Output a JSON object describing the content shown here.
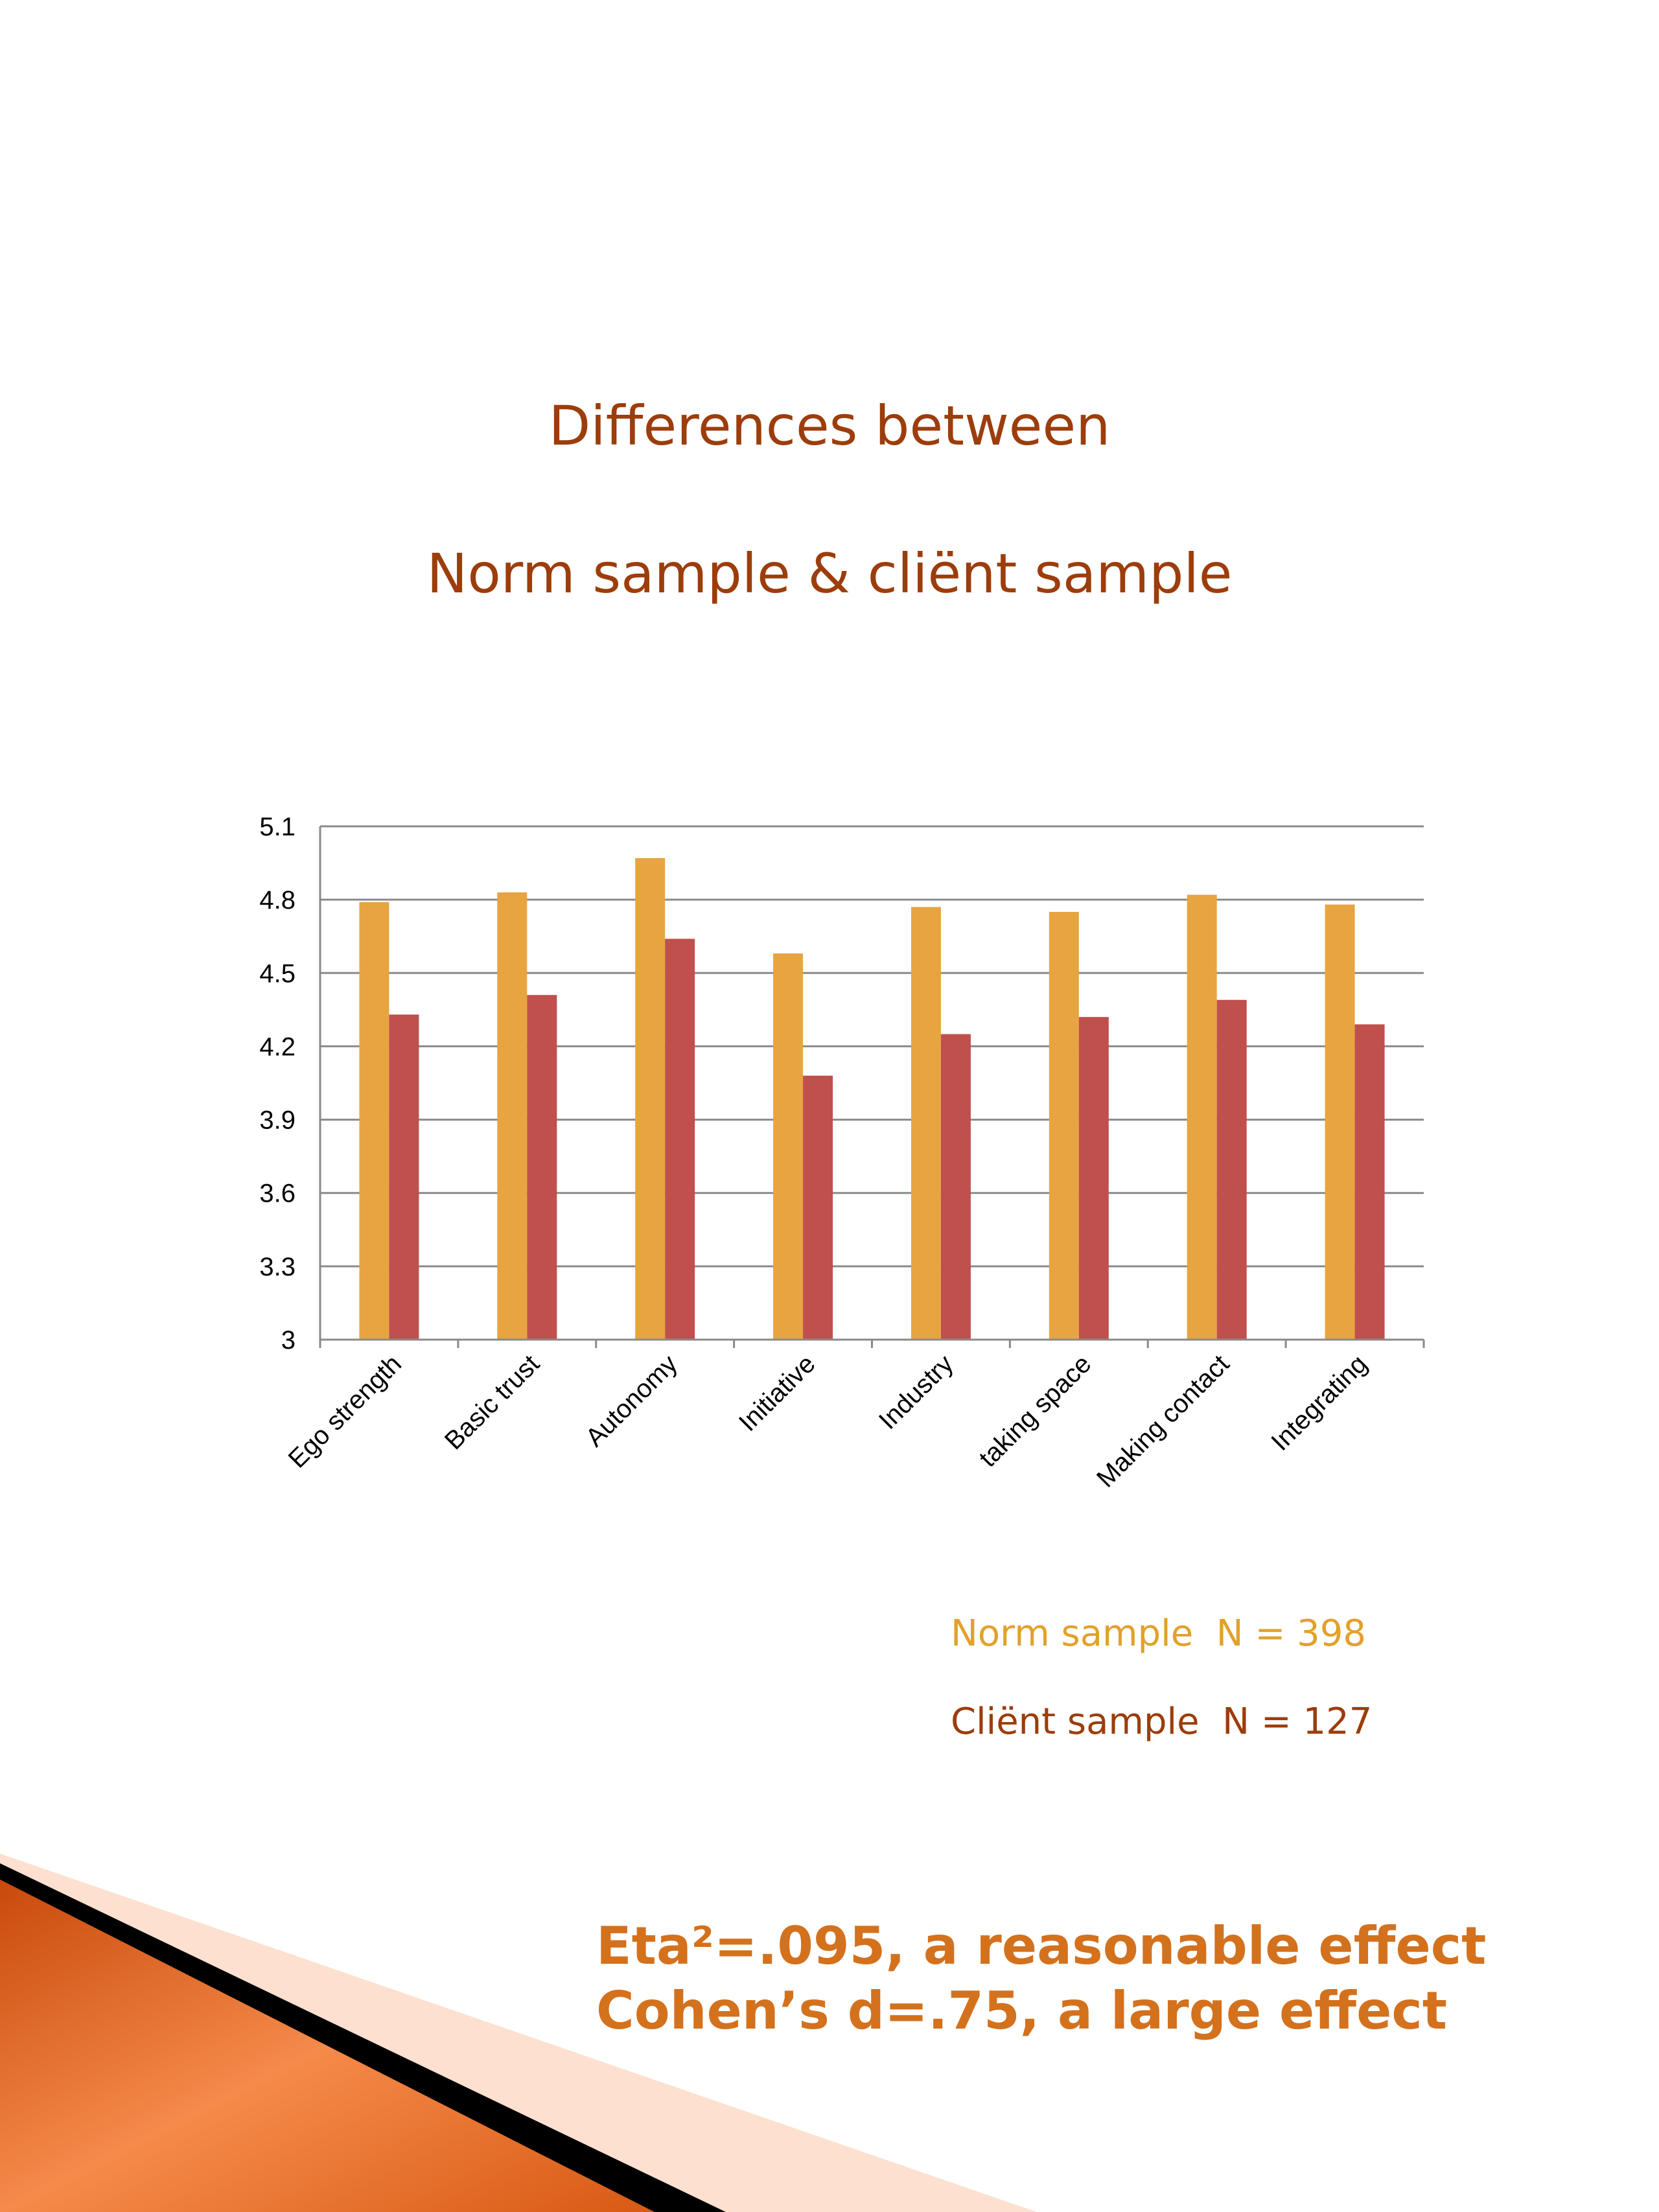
{
  "slide": {
    "title_line_1": "Differences between",
    "title_line_2": "Norm sample & cliënt sample",
    "legend_norm": "Norm sample  N = 398",
    "legend_client": "Cliënt sample  N = 127",
    "effect_eta": "Eta²=.095, a reasonable effect",
    "effect_cohen": "Cohen’s d=.75, a large effect"
  },
  "colors": {
    "title": "#9c3d0b",
    "norm_series": "#e8a440",
    "client_series": "#c0504d",
    "legend_norm": "#e2a12c",
    "legend_client": "#9c3d0b",
    "effect_text": "#d4711d",
    "gridline": "#8a8a8a",
    "corner_orange": "#e2631a",
    "corner_black": "#000000",
    "corner_peach": "#fde0cf"
  },
  "chart_data": {
    "type": "bar",
    "categories": [
      "Ego strength",
      "Basic trust",
      "Autonomy",
      "Initiative",
      "Industry",
      "taking space",
      "Making contact",
      "Integrating"
    ],
    "series": [
      {
        "values": [
          4.79,
          4.83,
          4.97,
          4.58,
          4.77,
          4.75,
          4.82,
          4.78
        ]
      },
      {
        "values": [
          4.33,
          4.41,
          4.64,
          4.08,
          4.25,
          4.32,
          4.39,
          4.29
        ]
      }
    ],
    "yticks": [
      "3",
      "3.3",
      "3.6",
      "3.9",
      "4.2",
      "4.5",
      "4.8",
      "5.1"
    ],
    "ylim": [
      3,
      5.1
    ],
    "grid": true,
    "title": "",
    "xlabel": "",
    "ylabel": ""
  }
}
